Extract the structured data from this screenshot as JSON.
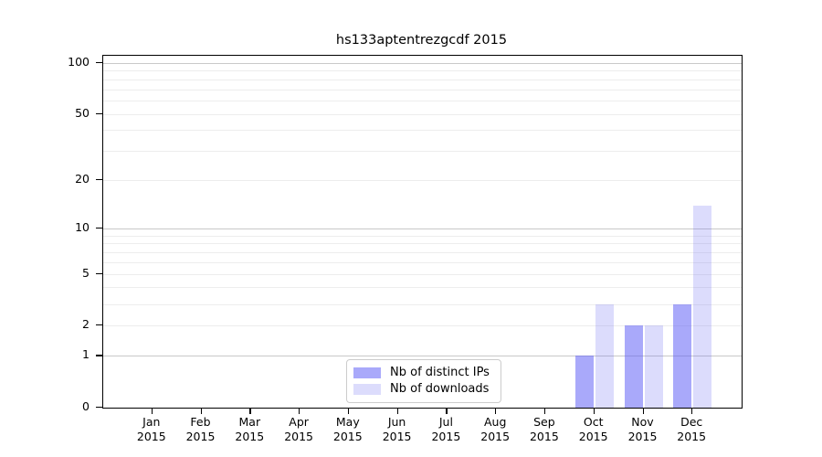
{
  "chart_data": {
    "type": "bar",
    "title": "hs133aptentrezgcdf 2015",
    "categories": [
      "Jan 2015",
      "Feb 2015",
      "Mar 2015",
      "Apr 2015",
      "May 2015",
      "Jun 2015",
      "Jul 2015",
      "Aug 2015",
      "Sep 2015",
      "Oct 2015",
      "Nov 2015",
      "Dec 2015"
    ],
    "series": [
      {
        "name": "Nb of distinct IPs",
        "values": [
          0,
          0,
          0,
          0,
          0,
          0,
          0,
          0,
          0,
          1,
          2,
          3
        ],
        "color": "rgba(90,90,245,0.52)",
        "color_hex_on_white": "#a9a9fa"
      },
      {
        "name": "Nb of downloads",
        "values": [
          0,
          0,
          0,
          0,
          0,
          0,
          0,
          0,
          0,
          3,
          2,
          14
        ],
        "color": "rgba(102,102,240,0.23)",
        "color_hex_on_white": "#dcdcfa"
      }
    ],
    "xlabel": "",
    "ylabel": "",
    "y_scale": "log1p",
    "ylim": [
      0,
      110
    ],
    "y_ticks": [
      0,
      1,
      2,
      5,
      10,
      20,
      50,
      100
    ],
    "grid": {
      "major_values": [
        1,
        10,
        100
      ],
      "minor_values": [
        2,
        3,
        4,
        5,
        6,
        7,
        8,
        9,
        20,
        30,
        40,
        50,
        60,
        70,
        80,
        90
      ],
      "major_color": "#c9c9c9",
      "minor_color": "#ededed"
    },
    "legend": {
      "position": "lower-center",
      "entries": [
        "Nb of distinct IPs",
        "Nb of downloads"
      ]
    },
    "frame_color": "#000000",
    "background_color": "#ffffff"
  }
}
